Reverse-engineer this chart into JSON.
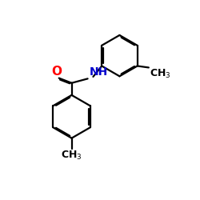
{
  "bg_color": "#ffffff",
  "bond_color": "#000000",
  "O_color": "#ff0000",
  "N_color": "#0000cc",
  "C_color": "#000000",
  "line_width": 1.6,
  "font_size_atom": 10,
  "font_size_sub": 8,
  "dbo": 0.055
}
